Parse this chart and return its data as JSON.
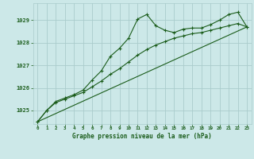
{
  "title": "Graphe pression niveau de la mer (hPa)",
  "bg_color": "#cce8e8",
  "grid_color": "#aacccc",
  "line_color": "#1a5c1a",
  "marker_color": "#1a5c1a",
  "xlim": [
    -0.5,
    23.5
  ],
  "ylim": [
    1024.4,
    1029.75
  ],
  "yticks": [
    1025,
    1026,
    1027,
    1028,
    1029
  ],
  "xticks": [
    0,
    1,
    2,
    3,
    4,
    5,
    6,
    7,
    8,
    9,
    10,
    11,
    12,
    13,
    14,
    15,
    16,
    17,
    18,
    19,
    20,
    21,
    22,
    23
  ],
  "series1_x": [
    0,
    1,
    2,
    3,
    4,
    5,
    6,
    7,
    8,
    9,
    10,
    11,
    12,
    13,
    14,
    15,
    16,
    17,
    18,
    19,
    20,
    21,
    22,
    23
  ],
  "series1_y": [
    1024.5,
    1025.0,
    1025.4,
    1025.55,
    1025.7,
    1025.9,
    1026.35,
    1026.75,
    1027.4,
    1027.75,
    1028.2,
    1029.05,
    1029.25,
    1028.75,
    1028.55,
    1028.45,
    1028.6,
    1028.65,
    1028.65,
    1028.8,
    1029.0,
    1029.25,
    1029.35,
    1028.7
  ],
  "series2_x": [
    0,
    23
  ],
  "series2_y": [
    1024.5,
    1028.7
  ],
  "series3_x": [
    0,
    1,
    2,
    3,
    4,
    5,
    6,
    7,
    8,
    9,
    10,
    11,
    12,
    13,
    14,
    15,
    16,
    17,
    18,
    19,
    20,
    21,
    22,
    23
  ],
  "series3_y": [
    1024.5,
    1025.0,
    1025.35,
    1025.5,
    1025.65,
    1025.8,
    1026.05,
    1026.3,
    1026.6,
    1026.85,
    1027.15,
    1027.45,
    1027.7,
    1027.9,
    1028.05,
    1028.2,
    1028.3,
    1028.4,
    1028.45,
    1028.55,
    1028.65,
    1028.75,
    1028.85,
    1028.7
  ]
}
